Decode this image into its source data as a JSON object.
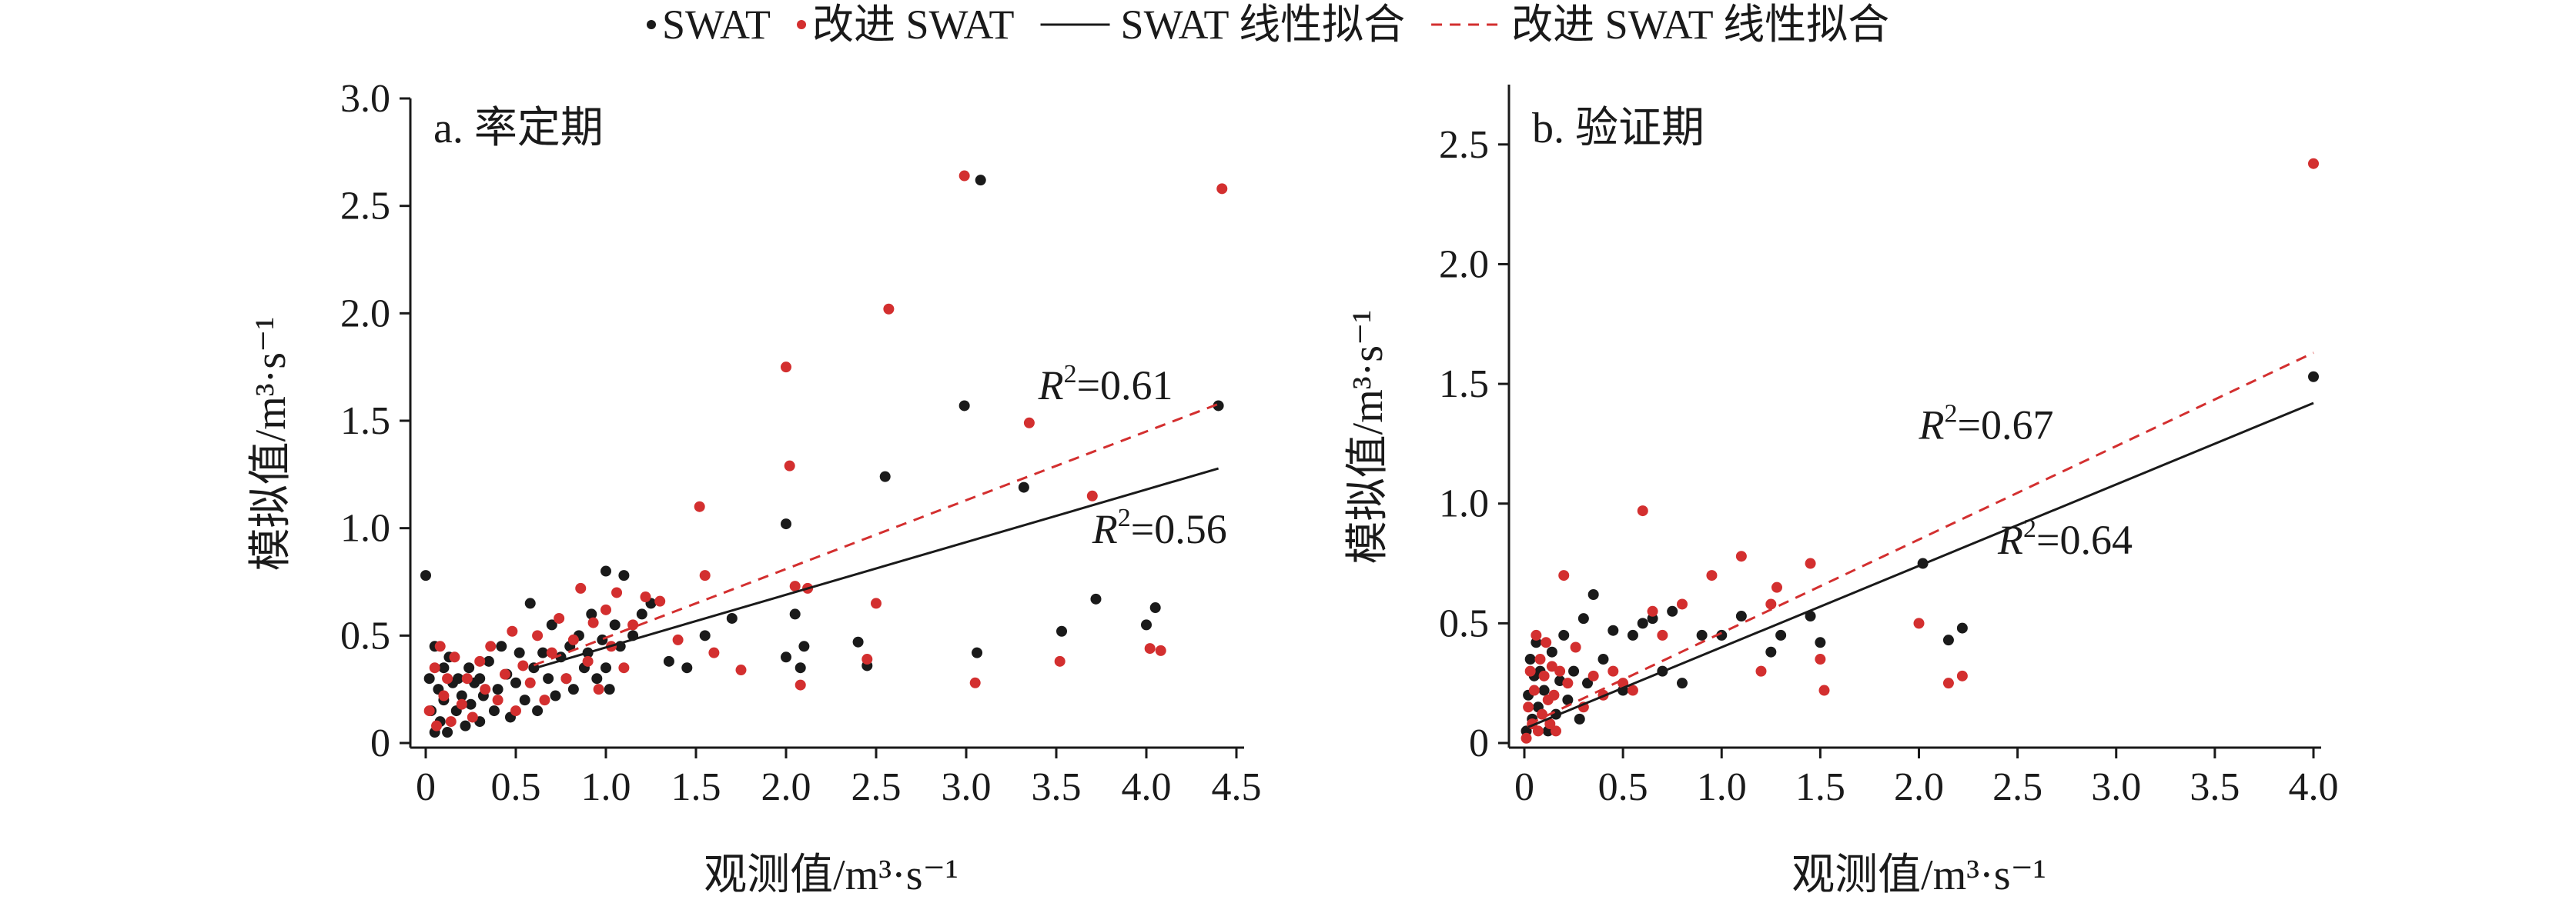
{
  "legend": {
    "items": [
      {
        "key": "swat_points",
        "label": "SWAT",
        "kind": "dot",
        "color": "#1a1a1a"
      },
      {
        "key": "improved_points",
        "label": "改进 SWAT",
        "kind": "dot",
        "color": "#d32f2f"
      },
      {
        "key": "swat_fit",
        "label": "SWAT 线性拟合",
        "kind": "solid",
        "color": "#1a1a1a"
      },
      {
        "key": "improved_fit",
        "label": "改进 SWAT 线性拟合",
        "kind": "dashed",
        "color": "#d32f2f"
      }
    ]
  },
  "chart_data": [
    {
      "type": "scatter",
      "panel_label": "a. 率定期",
      "xlabel": "观测值/m³·s⁻¹",
      "ylabel": "模拟值/m³·s⁻¹",
      "xlim": [
        0,
        4.5
      ],
      "ylim": [
        0,
        3.0
      ],
      "xticks": [
        0,
        0.5,
        1.0,
        1.5,
        2.0,
        2.5,
        3.0,
        3.5,
        4.0,
        4.5
      ],
      "xtick_labels": [
        "0",
        "0.5",
        "1.0",
        "1.5",
        "2.0",
        "2.5",
        "3.0",
        "3.5",
        "4.0",
        "4.5"
      ],
      "yticks": [
        0,
        0.5,
        1.0,
        1.5,
        2.0,
        2.5,
        3.0
      ],
      "ytick_labels": [
        "0",
        "0.5",
        "1.0",
        "1.5",
        "2.0",
        "2.5",
        "3.0"
      ],
      "annotations": [
        {
          "series": "improved",
          "prefix": "R",
          "sup": "2",
          "text": "=0.61",
          "x": 3.4,
          "y": 1.6
        },
        {
          "series": "swat",
          "prefix": "R",
          "sup": "2",
          "text": "=0.56",
          "x": 3.7,
          "y": 0.93
        }
      ],
      "series": [
        {
          "key": "swat",
          "color": "#1a1a1a",
          "fit": {
            "slope": 0.245,
            "intercept": 0.2,
            "x": [
              0.6,
              4.4
            ]
          },
          "points": [
            [
              0.0,
              0.78
            ],
            [
              0.02,
              0.3
            ],
            [
              0.03,
              0.15
            ],
            [
              0.05,
              0.05
            ],
            [
              0.05,
              0.45
            ],
            [
              0.07,
              0.25
            ],
            [
              0.08,
              0.1
            ],
            [
              0.1,
              0.35
            ],
            [
              0.1,
              0.2
            ],
            [
              0.12,
              0.05
            ],
            [
              0.13,
              0.4
            ],
            [
              0.15,
              0.28
            ],
            [
              0.17,
              0.15
            ],
            [
              0.18,
              0.3
            ],
            [
              0.2,
              0.22
            ],
            [
              0.22,
              0.08
            ],
            [
              0.24,
              0.35
            ],
            [
              0.25,
              0.18
            ],
            [
              0.27,
              0.28
            ],
            [
              0.3,
              0.3
            ],
            [
              0.3,
              0.1
            ],
            [
              0.32,
              0.22
            ],
            [
              0.35,
              0.38
            ],
            [
              0.38,
              0.15
            ],
            [
              0.4,
              0.25
            ],
            [
              0.42,
              0.45
            ],
            [
              0.45,
              0.32
            ],
            [
              0.47,
              0.12
            ],
            [
              0.5,
              0.28
            ],
            [
              0.52,
              0.42
            ],
            [
              0.55,
              0.2
            ],
            [
              0.58,
              0.65
            ],
            [
              0.6,
              0.35
            ],
            [
              0.62,
              0.15
            ],
            [
              0.65,
              0.42
            ],
            [
              0.68,
              0.3
            ],
            [
              0.7,
              0.55
            ],
            [
              0.72,
              0.22
            ],
            [
              0.75,
              0.4
            ],
            [
              0.78,
              0.3
            ],
            [
              0.8,
              0.45
            ],
            [
              0.82,
              0.25
            ],
            [
              0.85,
              0.5
            ],
            [
              0.88,
              0.35
            ],
            [
              0.9,
              0.42
            ],
            [
              0.92,
              0.6
            ],
            [
              0.95,
              0.3
            ],
            [
              0.98,
              0.48
            ],
            [
              1.0,
              0.8
            ],
            [
              1.0,
              0.35
            ],
            [
              1.02,
              0.25
            ],
            [
              1.05,
              0.55
            ],
            [
              1.08,
              0.45
            ],
            [
              1.1,
              0.78
            ],
            [
              1.15,
              0.5
            ],
            [
              1.2,
              0.6
            ],
            [
              1.25,
              0.65
            ],
            [
              1.35,
              0.38
            ],
            [
              1.45,
              0.35
            ],
            [
              1.55,
              0.5
            ],
            [
              1.7,
              0.58
            ],
            [
              2.0,
              1.02
            ],
            [
              2.0,
              0.4
            ],
            [
              2.05,
              0.6
            ],
            [
              2.08,
              0.35
            ],
            [
              2.1,
              0.45
            ],
            [
              2.4,
              0.47
            ],
            [
              2.45,
              0.36
            ],
            [
              2.55,
              1.24
            ],
            [
              2.99,
              1.57
            ],
            [
              3.08,
              2.62
            ],
            [
              3.06,
              0.42
            ],
            [
              3.32,
              1.19
            ],
            [
              3.53,
              0.52
            ],
            [
              3.72,
              0.67
            ],
            [
              4.0,
              0.55
            ],
            [
              4.05,
              0.63
            ],
            [
              4.4,
              1.57
            ]
          ]
        },
        {
          "key": "improved",
          "color": "#d32f2f",
          "fit": {
            "slope": 0.32,
            "intercept": 0.17,
            "x": [
              0.6,
              4.4
            ]
          },
          "points": [
            [
              0.02,
              0.15
            ],
            [
              0.05,
              0.35
            ],
            [
              0.06,
              0.08
            ],
            [
              0.08,
              0.45
            ],
            [
              0.1,
              0.22
            ],
            [
              0.12,
              0.3
            ],
            [
              0.14,
              0.1
            ],
            [
              0.16,
              0.4
            ],
            [
              0.2,
              0.18
            ],
            [
              0.23,
              0.3
            ],
            [
              0.26,
              0.12
            ],
            [
              0.3,
              0.38
            ],
            [
              0.33,
              0.25
            ],
            [
              0.36,
              0.45
            ],
            [
              0.4,
              0.2
            ],
            [
              0.44,
              0.32
            ],
            [
              0.48,
              0.52
            ],
            [
              0.5,
              0.15
            ],
            [
              0.54,
              0.36
            ],
            [
              0.58,
              0.28
            ],
            [
              0.62,
              0.5
            ],
            [
              0.66,
              0.2
            ],
            [
              0.7,
              0.42
            ],
            [
              0.74,
              0.58
            ],
            [
              0.78,
              0.3
            ],
            [
              0.82,
              0.48
            ],
            [
              0.86,
              0.72
            ],
            [
              0.9,
              0.38
            ],
            [
              0.93,
              0.56
            ],
            [
              0.96,
              0.25
            ],
            [
              1.0,
              0.62
            ],
            [
              1.03,
              0.45
            ],
            [
              1.06,
              0.7
            ],
            [
              1.1,
              0.35
            ],
            [
              1.15,
              0.55
            ],
            [
              1.22,
              0.68
            ],
            [
              1.3,
              0.66
            ],
            [
              1.4,
              0.48
            ],
            [
              1.52,
              1.1
            ],
            [
              1.55,
              0.78
            ],
            [
              1.6,
              0.42
            ],
            [
              1.75,
              0.34
            ],
            [
              2.0,
              1.75
            ],
            [
              2.02,
              1.29
            ],
            [
              2.05,
              0.73
            ],
            [
              2.08,
              0.27
            ],
            [
              2.12,
              0.72
            ],
            [
              2.45,
              0.39
            ],
            [
              2.5,
              0.65
            ],
            [
              2.57,
              2.02
            ],
            [
              2.99,
              2.64
            ],
            [
              3.05,
              0.28
            ],
            [
              3.35,
              1.49
            ],
            [
              3.52,
              0.38
            ],
            [
              3.7,
              1.15
            ],
            [
              4.02,
              0.44
            ],
            [
              4.08,
              0.43
            ],
            [
              4.42,
              2.58
            ]
          ]
        }
      ]
    },
    {
      "type": "scatter",
      "panel_label": "b. 验证期",
      "xlabel": "观测值/m³·s⁻¹",
      "ylabel": "模拟值/m³·s⁻¹",
      "xlim": [
        0,
        4.0
      ],
      "ylim": [
        0,
        2.75
      ],
      "xticks": [
        0,
        0.5,
        1.0,
        1.5,
        2.0,
        2.5,
        3.0,
        3.5,
        4.0
      ],
      "xtick_labels": [
        "0",
        "0.5",
        "1.0",
        "1.5",
        "2.0",
        "2.5",
        "3.0",
        "3.5",
        "4.0"
      ],
      "yticks": [
        0,
        0.5,
        1.0,
        1.5,
        2.0,
        2.5
      ],
      "ytick_labels": [
        "0",
        "0.5",
        "1.0",
        "1.5",
        "2.0",
        "2.5"
      ],
      "annotations": [
        {
          "series": "improved",
          "prefix": "R",
          "sup": "2",
          "text": "=0.67",
          "x": 2.0,
          "y": 1.27
        },
        {
          "series": "swat",
          "prefix": "R",
          "sup": "2",
          "text": "=0.64",
          "x": 2.4,
          "y": 0.79
        }
      ],
      "series": [
        {
          "key": "swat",
          "color": "#1a1a1a",
          "fit": {
            "slope": 0.34,
            "intercept": 0.06,
            "x": [
              0.02,
              4.0
            ]
          },
          "points": [
            [
              0.01,
              0.05
            ],
            [
              0.02,
              0.2
            ],
            [
              0.03,
              0.35
            ],
            [
              0.04,
              0.1
            ],
            [
              0.05,
              0.28
            ],
            [
              0.06,
              0.42
            ],
            [
              0.07,
              0.15
            ],
            [
              0.08,
              0.3
            ],
            [
              0.1,
              0.22
            ],
            [
              0.12,
              0.05
            ],
            [
              0.14,
              0.38
            ],
            [
              0.16,
              0.12
            ],
            [
              0.18,
              0.26
            ],
            [
              0.2,
              0.45
            ],
            [
              0.22,
              0.18
            ],
            [
              0.25,
              0.3
            ],
            [
              0.28,
              0.1
            ],
            [
              0.3,
              0.52
            ],
            [
              0.32,
              0.25
            ],
            [
              0.35,
              0.62
            ],
            [
              0.4,
              0.35
            ],
            [
              0.45,
              0.47
            ],
            [
              0.5,
              0.22
            ],
            [
              0.55,
              0.45
            ],
            [
              0.6,
              0.5
            ],
            [
              0.65,
              0.52
            ],
            [
              0.7,
              0.3
            ],
            [
              0.75,
              0.55
            ],
            [
              0.8,
              0.25
            ],
            [
              0.9,
              0.45
            ],
            [
              1.0,
              0.45
            ],
            [
              1.1,
              0.53
            ],
            [
              1.25,
              0.38
            ],
            [
              1.3,
              0.45
            ],
            [
              1.45,
              0.53
            ],
            [
              1.5,
              0.42
            ],
            [
              2.02,
              0.75
            ],
            [
              2.15,
              0.43
            ],
            [
              2.22,
              0.48
            ],
            [
              4.0,
              1.53
            ]
          ]
        },
        {
          "key": "improved",
          "color": "#d32f2f",
          "fit": {
            "slope": 0.39,
            "intercept": 0.07,
            "x": [
              0.02,
              4.0
            ]
          },
          "points": [
            [
              0.01,
              0.02
            ],
            [
              0.02,
              0.15
            ],
            [
              0.03,
              0.3
            ],
            [
              0.04,
              0.08
            ],
            [
              0.05,
              0.22
            ],
            [
              0.06,
              0.45
            ],
            [
              0.07,
              0.05
            ],
            [
              0.08,
              0.35
            ],
            [
              0.09,
              0.12
            ],
            [
              0.1,
              0.28
            ],
            [
              0.11,
              0.42
            ],
            [
              0.12,
              0.18
            ],
            [
              0.13,
              0.08
            ],
            [
              0.14,
              0.32
            ],
            [
              0.15,
              0.2
            ],
            [
              0.16,
              0.05
            ],
            [
              0.18,
              0.3
            ],
            [
              0.2,
              0.7
            ],
            [
              0.22,
              0.25
            ],
            [
              0.26,
              0.4
            ],
            [
              0.3,
              0.15
            ],
            [
              0.35,
              0.28
            ],
            [
              0.4,
              0.2
            ],
            [
              0.45,
              0.3
            ],
            [
              0.5,
              0.25
            ],
            [
              0.55,
              0.22
            ],
            [
              0.6,
              0.97
            ],
            [
              0.65,
              0.55
            ],
            [
              0.7,
              0.45
            ],
            [
              0.8,
              0.58
            ],
            [
              0.95,
              0.7
            ],
            [
              1.1,
              0.78
            ],
            [
              1.2,
              0.3
            ],
            [
              1.25,
              0.58
            ],
            [
              1.28,
              0.65
            ],
            [
              1.45,
              0.75
            ],
            [
              1.5,
              0.35
            ],
            [
              1.52,
              0.22
            ],
            [
              2.0,
              0.5
            ],
            [
              2.15,
              0.25
            ],
            [
              2.22,
              0.28
            ],
            [
              4.0,
              2.42
            ]
          ]
        }
      ]
    }
  ]
}
